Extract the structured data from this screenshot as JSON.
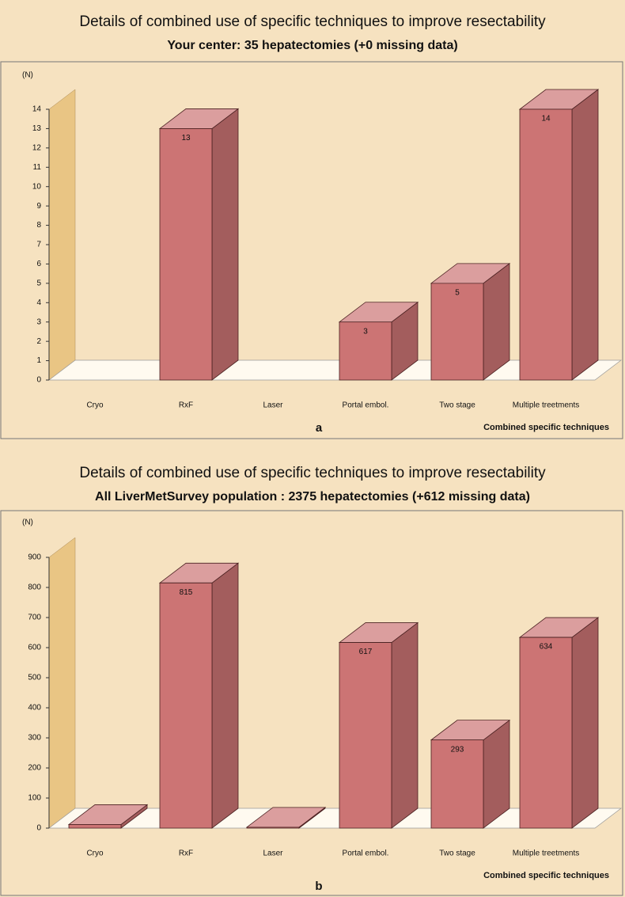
{
  "chart_data": [
    {
      "type": "bar3d",
      "title": "Details of combined use of specific techniques to improve resectability",
      "subtitle": "Your center: 35 hepatectomies (+0 missing data)",
      "y_label": "(N)",
      "x_label": "Combined specific techniques",
      "panel_label": "a",
      "categories": [
        "Cryo",
        "RxF",
        "Laser",
        "Portal embol.",
        "Two stage",
        "Multiple treetments"
      ],
      "values": [
        0,
        13,
        0,
        3,
        5,
        14
      ],
      "value_labels": [
        null,
        "13",
        null,
        "3",
        "5",
        "14"
      ],
      "color": "#cc7474",
      "ylim": [
        0,
        14
      ],
      "yticks": [
        0,
        1,
        2,
        3,
        4,
        5,
        6,
        7,
        8,
        9,
        10,
        11,
        12,
        13,
        14
      ]
    },
    {
      "type": "bar3d",
      "title": "Details of combined use of specific techniques to improve resectability",
      "subtitle": "All LiverMetSurvey population : 2375 hepatectomies (+612 missing data)",
      "y_label": "(N)",
      "x_label": "Combined specific techniques",
      "panel_label": "b",
      "categories": [
        "Cryo",
        "RxF",
        "Laser",
        "Portal embol.",
        "Two stage",
        "Multiple treetments"
      ],
      "values": [
        12,
        815,
        3,
        617,
        293,
        634
      ],
      "value_labels": [
        null,
        "815",
        null,
        "617",
        "293",
        "634"
      ],
      "color": "#cc7474",
      "ylim": [
        0,
        900
      ],
      "yticks": [
        0,
        100,
        200,
        300,
        400,
        500,
        600,
        700,
        800,
        900
      ]
    }
  ]
}
